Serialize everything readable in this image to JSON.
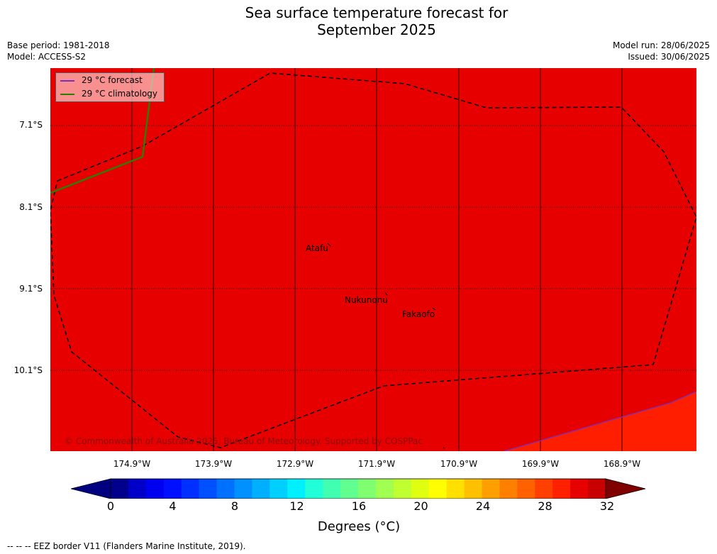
{
  "title": {
    "line1": "Sea surface temperature forecast for",
    "line2": "September 2025"
  },
  "meta": {
    "base_period": "Base period: 1981-2018",
    "model": "Model: ACCESS-S2",
    "model_run": "Model run: 28/06/2025",
    "issued": "Issued: 30/06/2025"
  },
  "legend": {
    "forecast": "29 °C  forecast",
    "climatology": "29 °C  climatology",
    "forecast_color": "#7b2fbe",
    "climatology_color": "#2e7d00"
  },
  "map": {
    "lat_labels": [
      "7.1°S",
      "8.1°S",
      "9.1°S",
      "10.1°S"
    ],
    "lon_labels": [
      "174.9°W",
      "173.9°W",
      "172.9°W",
      "171.9°W",
      "170.9°W",
      "169.9°W",
      "168.9°W"
    ],
    "places": {
      "atafu": "Atafu",
      "nukunonu": "Nukunonu",
      "fakaofo": "Fakaofo"
    },
    "copyright": "© Commonwealth of Australia 2025, Bureau of Meteorology. Supported by COSPPac",
    "fill_color_main": "#e60000",
    "fill_color_warm": "#ff1e00"
  },
  "colorbar": {
    "ticks": [
      "0",
      "4",
      "8",
      "12",
      "16",
      "20",
      "24",
      "28",
      "32"
    ],
    "label": "Degrees (°C)",
    "colors": [
      "#00008c",
      "#0000c8",
      "#0000f0",
      "#0010ff",
      "#0030ff",
      "#0050ff",
      "#0070ff",
      "#0090ff",
      "#00b0ff",
      "#00d0ff",
      "#00f0ff",
      "#20ffd8",
      "#40ffb0",
      "#60ff90",
      "#80ff70",
      "#a0ff50",
      "#c0ff30",
      "#e0ff10",
      "#ffff00",
      "#ffe000",
      "#ffc000",
      "#ffa000",
      "#ff8000",
      "#ff6000",
      "#ff4000",
      "#ff2000",
      "#e60000",
      "#c80000"
    ],
    "under_color": "#000080",
    "over_color": "#800000"
  },
  "footer": "--  --  -- EEZ border V11 (Flanders Marine Institute, 2019)."
}
